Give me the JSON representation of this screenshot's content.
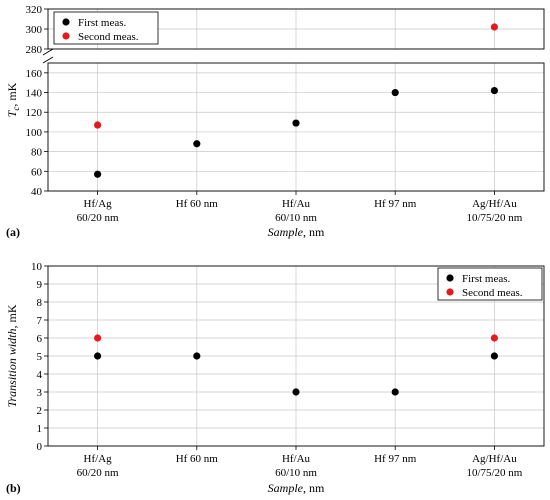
{
  "panels": [
    {
      "id": "a",
      "panel_label": "(a)",
      "legend_position": "top-left"
    },
    {
      "id": "b",
      "panel_label": "(b)",
      "legend_position": "top-right"
    }
  ],
  "chart_data": [
    {
      "type": "scatter",
      "title": "",
      "xlabel": "Sample, nm",
      "xlabel_italic": "Sample",
      "xlabel_unit": ", nm",
      "ylabel": "T_c, mK",
      "ylabel_main": "T",
      "ylabel_sub": "c",
      "ylabel_unit": ", mK",
      "categories": [
        [
          "Hf/Ag",
          "60/20 nm"
        ],
        [
          "Hf 60 nm"
        ],
        [
          "Hf/Au",
          "60/10 nm"
        ],
        [
          "Hf 97 nm"
        ],
        [
          "Ag/Hf/Au",
          "10/75/20 nm"
        ]
      ],
      "axis_break": true,
      "ylim_lower": [
        40,
        170
      ],
      "ylim_upper": [
        280,
        320
      ],
      "yticks_lower": [
        "40",
        "60",
        "80",
        "100",
        "120",
        "140",
        "160"
      ],
      "yticks_upper": [
        "280",
        "300",
        "320"
      ],
      "grid": true,
      "series": [
        {
          "name": "First meas.",
          "color": "#000000",
          "values": [
            57,
            88,
            109,
            140,
            142
          ]
        },
        {
          "name": "Second meas.",
          "color": "#e41a1c",
          "values": [
            107,
            null,
            null,
            null,
            302
          ]
        }
      ]
    },
    {
      "type": "scatter",
      "title": "",
      "xlabel": "Sample, nm",
      "xlabel_italic": "Sample",
      "xlabel_unit": ", nm",
      "ylabel": "Transition width, mK",
      "ylabel_italic": "Transition width",
      "ylabel_unit": ", mK",
      "categories": [
        [
          "Hf/Ag",
          "60/20 nm"
        ],
        [
          "Hf 60 nm"
        ],
        [
          "Hf/Au",
          "60/10 nm"
        ],
        [
          "Hf 97 nm"
        ],
        [
          "Ag/Hf/Au",
          "10/75/20 nm"
        ]
      ],
      "ylim": [
        0,
        10
      ],
      "yticks": [
        "0",
        "1",
        "2",
        "3",
        "4",
        "5",
        "6",
        "7",
        "8",
        "9",
        "10"
      ],
      "grid": true,
      "series": [
        {
          "name": "First meas.",
          "color": "#000000",
          "values": [
            5,
            5,
            3,
            3,
            5
          ]
        },
        {
          "name": "Second meas.",
          "color": "#e41a1c",
          "values": [
            6,
            null,
            null,
            null,
            6
          ]
        }
      ]
    }
  ]
}
